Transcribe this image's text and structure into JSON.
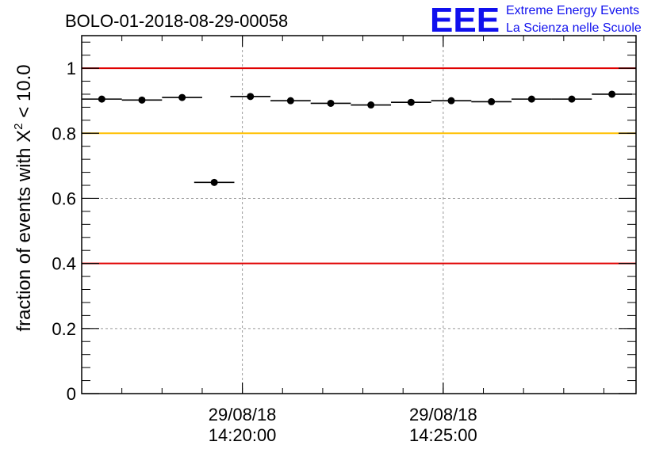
{
  "header": {
    "title": "BOLO-01-2018-08-29-00058"
  },
  "logo": {
    "mark": "EEE",
    "line1": "Extreme Energy Events",
    "line2": "La Scienza nelle Scuole",
    "color": "#1010ee"
  },
  "chart_data": {
    "type": "scatter",
    "title": "BOLO-01-2018-08-29-00058",
    "ylabel_prefix": "fraction of events with ",
    "ylabel_symbol": "X",
    "ylabel_sup": "2",
    "ylabel_suffix": " < 10.0",
    "ylim": [
      0,
      1.1
    ],
    "y_ticks": [
      {
        "value": 0,
        "label": "0"
      },
      {
        "value": 0.2,
        "label": "0.2"
      },
      {
        "value": 0.4,
        "label": "0.4"
      },
      {
        "value": 0.6,
        "label": "0.6"
      },
      {
        "value": 0.8,
        "label": "0.8"
      },
      {
        "value": 1.0,
        "label": "1"
      }
    ],
    "x_ticks": [
      {
        "value": 4,
        "date": "29/08/18",
        "time": "14:20:00"
      },
      {
        "value": 9,
        "date": "29/08/18",
        "time": "14:25:00"
      }
    ],
    "x_unit": "minutes",
    "xlim": [
      0,
      13.8
    ],
    "grid": true,
    "reference_lines": [
      {
        "y": 1.0,
        "color": "#e00000"
      },
      {
        "y": 0.8,
        "color": "#ffc000"
      },
      {
        "y": 0.4,
        "color": "#e00000"
      }
    ],
    "series": [
      {
        "points": [
          {
            "x": 0.5,
            "y": 0.905
          },
          {
            "x": 1.5,
            "y": 0.902
          },
          {
            "x": 2.5,
            "y": 0.91
          },
          {
            "x": 3.3,
            "y": 0.649
          },
          {
            "x": 4.2,
            "y": 0.913
          },
          {
            "x": 5.2,
            "y": 0.9
          },
          {
            "x": 6.2,
            "y": 0.892
          },
          {
            "x": 7.2,
            "y": 0.887
          },
          {
            "x": 8.2,
            "y": 0.895
          },
          {
            "x": 9.2,
            "y": 0.9
          },
          {
            "x": 10.2,
            "y": 0.897
          },
          {
            "x": 11.2,
            "y": 0.905
          },
          {
            "x": 12.2,
            "y": 0.905
          },
          {
            "x": 13.2,
            "y": 0.92
          }
        ],
        "x_error": 0.5,
        "color": "#000000"
      }
    ]
  }
}
